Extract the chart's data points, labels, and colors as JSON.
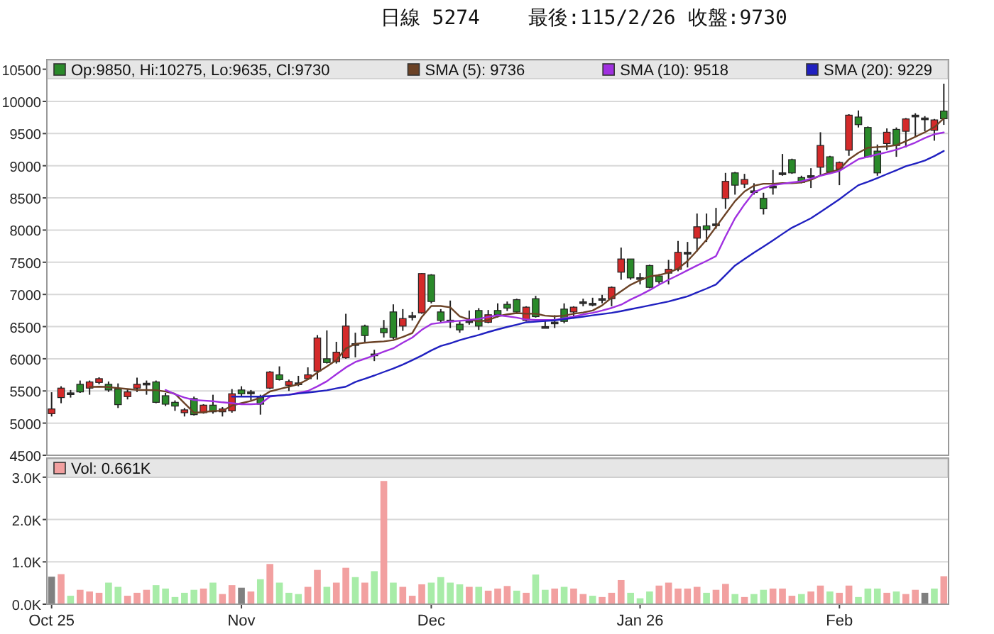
{
  "chart_data": [
    {
      "type": "candlestick",
      "title": "日線 5274",
      "subtitle": "最後:115/2/26 收盤:9730",
      "categories": [
        null,
        null,
        null,
        null,
        null,
        null,
        null,
        null,
        null,
        null,
        null,
        null,
        null,
        null,
        null,
        null,
        null,
        null,
        null,
        null,
        null,
        null,
        null,
        null,
        null,
        null,
        null,
        null,
        null,
        null,
        null,
        null,
        null,
        null,
        null,
        null,
        null,
        null,
        null,
        null,
        null,
        null,
        null,
        null,
        null,
        null,
        null,
        null,
        null,
        null,
        null,
        null,
        null,
        null,
        null,
        null,
        null,
        null,
        null,
        null,
        null,
        null,
        null,
        null,
        null,
        null,
        null,
        null,
        null,
        null,
        null,
        null,
        null,
        null,
        null,
        null,
        null,
        null,
        null,
        null,
        null,
        null,
        null,
        null,
        null,
        null,
        null,
        null,
        null,
        null,
        null,
        null,
        null,
        null,
        null
      ],
      "ylim": [
        4500,
        10650
      ],
      "yticks": [
        4500,
        5000,
        5500,
        6000,
        6500,
        7000,
        7500,
        8000,
        8500,
        9000,
        9500,
        10000,
        10500
      ],
      "grid": "y",
      "legend": "top",
      "tick_labels": "y",
      "series": [
        {
          "type": "candlestick",
          "name": "Op:9850, Hi:10275, Lo:9635, Cl:9730",
          "color": "#2a8a2a",
          "ohlc": [
            [
              5147,
              5480,
              5103,
              5220
            ],
            [
              5397,
              5573,
              5309,
              5544
            ],
            [
              5470,
              5515,
              5397,
              5456
            ],
            [
              5603,
              5662,
              5470,
              5485
            ],
            [
              5544,
              5662,
              5441,
              5640
            ],
            [
              5632,
              5713,
              5603,
              5691
            ],
            [
              5603,
              5647,
              5485,
              5515
            ],
            [
              5529,
              5617,
              5235,
              5287
            ],
            [
              5412,
              5529,
              5368,
              5485
            ],
            [
              5544,
              5706,
              5485,
              5603
            ],
            [
              5620,
              5662,
              5441,
              5610
            ],
            [
              5640,
              5662,
              5309,
              5323
            ],
            [
              5426,
              5470,
              5265,
              5294
            ],
            [
              5323,
              5353,
              5191,
              5265
            ],
            [
              5162,
              5235,
              5103,
              5206
            ],
            [
              5382,
              5412,
              5118,
              5132
            ],
            [
              5162,
              5294,
              5147,
              5279
            ],
            [
              5279,
              5441,
              5147,
              5176
            ],
            [
              5176,
              5250,
              5103,
              5220
            ],
            [
              5191,
              5529,
              5162,
              5456
            ],
            [
              5515,
              5573,
              5412,
              5456
            ],
            [
              5485,
              5515,
              5353,
              5456
            ],
            [
              5397,
              5441,
              5132,
              5294
            ],
            [
              5544,
              5809,
              5529,
              5794
            ],
            [
              5750,
              5882,
              5662,
              5676
            ],
            [
              5588,
              5676,
              5500,
              5647
            ],
            [
              5617,
              5735,
              5573,
              5625
            ],
            [
              5691,
              5867,
              5676,
              5750
            ],
            [
              5808,
              6367,
              5676,
              6323
            ],
            [
              6000,
              6441,
              5926,
              5941
            ],
            [
              5955,
              6264,
              5926,
              6102
            ],
            [
              6015,
              6699,
              6000,
              6508
            ],
            [
              6220,
              6405,
              6022,
              6235
            ],
            [
              6508,
              6530,
              6258,
              6361
            ],
            [
              6070,
              6140,
              5964,
              6074
            ],
            [
              6471,
              6603,
              6331,
              6405
            ],
            [
              6728,
              6846,
              6302,
              6331
            ],
            [
              6508,
              6772,
              6434,
              6625
            ],
            [
              6665,
              6728,
              6596,
              6670
            ],
            [
              6714,
              7331,
              6699,
              7324
            ],
            [
              7302,
              7316,
              6861,
              6890
            ],
            [
              6728,
              6772,
              6552,
              6596
            ],
            [
              6600,
              6905,
              6478,
              6596
            ],
            [
              6537,
              6581,
              6405,
              6449
            ],
            [
              6590,
              6750,
              6530,
              6581
            ],
            [
              6750,
              6787,
              6449,
              6508
            ],
            [
              6567,
              6758,
              6552,
              6684
            ],
            [
              6750,
              6861,
              6640,
              6684
            ],
            [
              6846,
              6890,
              6743,
              6787
            ],
            [
              6919,
              6934,
              6714,
              6728
            ],
            [
              6596,
              6816,
              6581,
              6802
            ],
            [
              6934,
              6978,
              6640,
              6655
            ],
            [
              6500,
              6596,
              6478,
              6493
            ],
            [
              6570,
              6677,
              6478,
              6567
            ],
            [
              6772,
              6861,
              6552,
              6581
            ],
            [
              6728,
              6816,
              6625,
              6802
            ],
            [
              6885,
              6934,
              6816,
              6883
            ],
            [
              6860,
              6949,
              6816,
              6861
            ],
            [
              6935,
              6993,
              6861,
              6934
            ],
            [
              6934,
              7125,
              6816,
              7110
            ],
            [
              7346,
              7728,
              7228,
              7551
            ],
            [
              7551,
              7551,
              7228,
              7257
            ],
            [
              7260,
              7331,
              7155,
              7257
            ],
            [
              7449,
              7463,
              7096,
              7110
            ],
            [
              7287,
              7316,
              7169,
              7199
            ],
            [
              7331,
              7537,
              7155,
              7390
            ],
            [
              7390,
              7831,
              7360,
              7654
            ],
            [
              7650,
              7816,
              7419,
              7654
            ],
            [
              7875,
              8257,
              7669,
              8051
            ],
            [
              8066,
              8257,
              7816,
              8007
            ],
            [
              8095,
              8345,
              8022,
              8095
            ],
            [
              8492,
              8889,
              8330,
              8757
            ],
            [
              8889,
              8904,
              8551,
              8698
            ],
            [
              8713,
              8874,
              8654,
              8786
            ],
            [
              8610,
              8728,
              8551,
              8610
            ],
            [
              8492,
              8580,
              8242,
              8331
            ],
            [
              8683,
              8933,
              8551,
              8683
            ],
            [
              8885,
              9183,
              8845,
              8889
            ],
            [
              9095,
              9110,
              8874,
              8889
            ],
            [
              8816,
              8845,
              8728,
              8742
            ],
            [
              8845,
              8962,
              8654,
              8845
            ],
            [
              8977,
              9521,
              8860,
              9315
            ],
            [
              9139,
              9154,
              8874,
              8904
            ],
            [
              8948,
              9066,
              8698,
              9051
            ],
            [
              9242,
              9801,
              9154,
              9786
            ],
            [
              9757,
              9860,
              9595,
              9639
            ],
            [
              9595,
              9610,
              9125,
              9139
            ],
            [
              9227,
              9330,
              8845,
              8889
            ],
            [
              9345,
              9580,
              9242,
              9521
            ],
            [
              9565,
              9595,
              9139,
              9315
            ],
            [
              9536,
              9742,
              9286,
              9727
            ],
            [
              9786,
              9816,
              9448,
              9786
            ],
            [
              9742,
              9771,
              9536,
              9742
            ],
            [
              9551,
              9727,
              9389,
              9712
            ],
            [
              9850,
              10275,
              9635,
              9730
            ]
          ],
          "colors": [
            "#d42a2a",
            "#d42a2a",
            "#333333",
            "#2a8a2a",
            "#d42a2a",
            "#d42a2a",
            "#2a8a2a",
            "#2a8a2a",
            "#d42a2a",
            "#d42a2a",
            "#333333",
            "#2a8a2a",
            "#2a8a2a",
            "#2a8a2a",
            "#d42a2a",
            "#2a8a2a",
            "#d42a2a",
            "#2a8a2a",
            "#d42a2a",
            "#d42a2a",
            "#2a8a2a",
            "#333333",
            "#2a8a2a",
            "#d42a2a",
            "#2a8a2a",
            "#d42a2a",
            "#333333",
            "#d42a2a",
            "#d42a2a",
            "#2a8a2a",
            "#d42a2a",
            "#d42a2a",
            "#333333",
            "#2a8a2a",
            "#333333",
            "#2a8a2a",
            "#2a8a2a",
            "#d42a2a",
            "#333333",
            "#d42a2a",
            "#2a8a2a",
            "#2a8a2a",
            "#333333",
            "#2a8a2a",
            "#333333",
            "#2a8a2a",
            "#d42a2a",
            "#2a8a2a",
            "#2a8a2a",
            "#2a8a2a",
            "#d42a2a",
            "#2a8a2a",
            "#333333",
            "#333333",
            "#2a8a2a",
            "#d42a2a",
            "#333333",
            "#333333",
            "#333333",
            "#d42a2a",
            "#d42a2a",
            "#2a8a2a",
            "#333333",
            "#2a8a2a",
            "#2a8a2a",
            "#d42a2a",
            "#d42a2a",
            "#333333",
            "#d42a2a",
            "#2a8a2a",
            "#333333",
            "#d42a2a",
            "#2a8a2a",
            "#d42a2a",
            "#333333",
            "#2a8a2a",
            "#333333",
            "#333333",
            "#2a8a2a",
            "#2a8a2a",
            "#333333",
            "#d42a2a",
            "#2a8a2a",
            "#d42a2a",
            "#d42a2a",
            "#2a8a2a",
            "#2a8a2a",
            "#2a8a2a",
            "#d42a2a",
            "#2a8a2a",
            "#d42a2a",
            "#333333",
            "#333333",
            "#d42a2a",
            "#2a8a2a"
          ]
        },
        {
          "type": "line",
          "name": "SMA (5): 9736",
          "color": "#6b4226",
          "values": [
            null,
            null,
            null,
            null,
            5560,
            5566,
            5560,
            5544,
            5530,
            5515,
            5515,
            5512,
            5490,
            5456,
            5309,
            5162,
            5170,
            5190,
            5191,
            5272,
            5310,
            5345,
            5397,
            5492,
            5530,
            5566,
            5603,
            5680,
            5786,
            5880,
            5980,
            6160,
            6230,
            6250,
            6260,
            6270,
            6290,
            6340,
            6400,
            6650,
            6820,
            6820,
            6800,
            6660,
            6610,
            6580,
            6600,
            6660,
            6690,
            6710,
            6700,
            6700,
            6670,
            6660,
            6670,
            6700,
            6720,
            6750,
            6830,
            6950,
            7050,
            7150,
            7220,
            7280,
            7300,
            7340,
            7400,
            7520,
            7680,
            7850,
            8050,
            8250,
            8450,
            8600,
            8690,
            8720,
            8720,
            8730,
            8730,
            8740,
            8780,
            8850,
            8900,
            8940,
            9100,
            9200,
            9280,
            9290,
            9300,
            9320,
            9380,
            9450,
            9520,
            9600,
            9736
          ]
        },
        {
          "type": "line",
          "name": "SMA (10): 9518",
          "color": "#a030e0",
          "values": [
            null,
            null,
            null,
            null,
            null,
            null,
            null,
            null,
            null,
            null,
            null,
            null,
            5515,
            5450,
            5397,
            5360,
            5350,
            5340,
            5323,
            5310,
            5294,
            5294,
            5300,
            5412,
            5430,
            5441,
            5470,
            5500,
            5570,
            5650,
            5760,
            5865,
            5950,
            6000,
            6052,
            6110,
            6162,
            6250,
            6330,
            6450,
            6540,
            6560,
            6580,
            6590,
            6603,
            6620,
            6650,
            6677,
            6660,
            6640,
            6610,
            6603,
            6603,
            6603,
            6630,
            6655,
            6690,
            6714,
            6750,
            6790,
            6840,
            6920,
            6990,
            7066,
            7150,
            7228,
            7300,
            7375,
            7450,
            7520,
            7596,
            7900,
            8184,
            8400,
            8588,
            8650,
            8698,
            8720,
            8740,
            8757,
            8800,
            8845,
            8880,
            8919,
            9010,
            9102,
            9140,
            9176,
            9210,
            9249,
            9300,
            9360,
            9430,
            9490,
            9518
          ]
        },
        {
          "type": "line",
          "name": "SMA (20): 9229",
          "color": "#2020c0",
          "values": [
            null,
            null,
            null,
            null,
            null,
            null,
            null,
            null,
            null,
            null,
            null,
            null,
            null,
            null,
            null,
            null,
            null,
            null,
            null,
            5412,
            5412,
            5412,
            5412,
            5420,
            5430,
            5441,
            5460,
            5475,
            5492,
            5510,
            5540,
            5566,
            5640,
            5690,
            5740,
            5795,
            5850,
            5910,
            5979,
            6050,
            6130,
            6199,
            6240,
            6290,
            6331,
            6370,
            6415,
            6456,
            6495,
            6530,
            6567,
            6577,
            6587,
            6596,
            6616,
            6635,
            6655,
            6675,
            6695,
            6714,
            6740,
            6770,
            6800,
            6830,
            6860,
            6890,
            6930,
            6971,
            7030,
            7090,
            7155,
            7300,
            7449,
            7550,
            7650,
            7743,
            7840,
            7940,
            8037,
            8110,
            8184,
            8280,
            8380,
            8478,
            8590,
            8698,
            8750,
            8808,
            8870,
            8930,
            8992,
            9035,
            9080,
            9150,
            9229
          ]
        }
      ]
    },
    {
      "type": "bar",
      "categories": [
        "Oct 25",
        null,
        null,
        null,
        null,
        null,
        null,
        null,
        null,
        null,
        null,
        null,
        null,
        null,
        null,
        null,
        null,
        null,
        null,
        null,
        "Nov",
        null,
        null,
        null,
        null,
        null,
        null,
        null,
        null,
        null,
        null,
        null,
        null,
        null,
        null,
        null,
        null,
        null,
        null,
        null,
        "Dec",
        null,
        null,
        null,
        null,
        null,
        null,
        null,
        null,
        null,
        null,
        null,
        null,
        null,
        null,
        null,
        null,
        null,
        null,
        null,
        null,
        null,
        "Jan 26",
        null,
        null,
        null,
        null,
        null,
        null,
        null,
        null,
        null,
        null,
        null,
        null,
        null,
        null,
        null,
        null,
        null,
        null,
        null,
        null,
        "Feb",
        null,
        null,
        null,
        null,
        null,
        null,
        null,
        null,
        null,
        null,
        null
      ],
      "ylim": [
        0,
        3.45
      ],
      "yticks": [
        {
          "value": 0,
          "label": "0.0K"
        },
        {
          "value": 1,
          "label": "1.0K"
        },
        {
          "value": 2,
          "label": "2.0K"
        },
        {
          "value": 3,
          "label": "3.0K"
        }
      ],
      "grid": "y",
      "legend": "top",
      "series": [
        {
          "name": "Vol: 0.661K",
          "color": "#f2a0a0",
          "values": [
            0.65,
            0.71,
            0.2,
            0.34,
            0.3,
            0.27,
            0.51,
            0.41,
            0.2,
            0.27,
            0.34,
            0.45,
            0.37,
            0.17,
            0.27,
            0.34,
            0.37,
            0.51,
            0.24,
            0.45,
            0.39,
            0.3,
            0.59,
            0.95,
            0.51,
            0.27,
            0.24,
            0.41,
            0.81,
            0.41,
            0.51,
            0.86,
            0.64,
            0.51,
            0.78,
            2.91,
            0.51,
            0.41,
            0.2,
            0.47,
            0.51,
            0.64,
            0.51,
            0.47,
            0.41,
            0.41,
            0.32,
            0.37,
            0.43,
            0.32,
            0.27,
            0.7,
            0.34,
            0.37,
            0.41,
            0.37,
            0.24,
            0.2,
            0.17,
            0.27,
            0.57,
            0.27,
            0.14,
            0.3,
            0.44,
            0.51,
            0.37,
            0.37,
            0.41,
            0.27,
            0.34,
            0.48,
            0.24,
            0.17,
            0.24,
            0.34,
            0.37,
            0.37,
            0.2,
            0.24,
            0.3,
            0.44,
            0.3,
            0.27,
            0.44,
            0.17,
            0.37,
            0.37,
            0.27,
            0.3,
            0.24,
            0.34,
            0.27,
            0.37,
            0.661
          ],
          "colors": [
            "#808080",
            "#f2a0a0",
            "#a8eca8",
            "#f2a0a0",
            "#f2a0a0",
            "#f2a0a0",
            "#a8eca8",
            "#a8eca8",
            "#f2a0a0",
            "#f2a0a0",
            "#f2a0a0",
            "#a8eca8",
            "#a8eca8",
            "#a8eca8",
            "#a8eca8",
            "#a8eca8",
            "#f2a0a0",
            "#a8eca8",
            "#f2a0a0",
            "#f2a0a0",
            "#808080",
            "#f2a0a0",
            "#a8eca8",
            "#f2a0a0",
            "#a8eca8",
            "#a8eca8",
            "#a8eca8",
            "#f2a0a0",
            "#f2a0a0",
            "#a8eca8",
            "#f2a0a0",
            "#f2a0a0",
            "#a8eca8",
            "#f2a0a0",
            "#a8eca8",
            "#f2a0a0",
            "#a8eca8",
            "#f2a0a0",
            "#f2a0a0",
            "#f2a0a0",
            "#a8eca8",
            "#a8eca8",
            "#a8eca8",
            "#a8eca8",
            "#f2a0a0",
            "#a8eca8",
            "#f2a0a0",
            "#f2a0a0",
            "#f2a0a0",
            "#a8eca8",
            "#f2a0a0",
            "#a8eca8",
            "#a8eca8",
            "#f2a0a0",
            "#a8eca8",
            "#f2a0a0",
            "#f2a0a0",
            "#a8eca8",
            "#f2a0a0",
            "#f2a0a0",
            "#f2a0a0",
            "#a8eca8",
            "#a8eca8",
            "#a8eca8",
            "#f2a0a0",
            "#f2a0a0",
            "#f2a0a0",
            "#f2a0a0",
            "#f2a0a0",
            "#a8eca8",
            "#f2a0a0",
            "#f2a0a0",
            "#a8eca8",
            "#f2a0a0",
            "#a8eca8",
            "#a8eca8",
            "#f2a0a0",
            "#f2a0a0",
            "#f2a0a0",
            "#a8eca8",
            "#f2a0a0",
            "#f2a0a0",
            "#a8eca8",
            "#f2a0a0",
            "#f2a0a0",
            "#a8eca8",
            "#a8eca8",
            "#a8eca8",
            "#f2a0a0",
            "#a8eca8",
            "#f2a0a0",
            "#f2a0a0",
            "#808080",
            "#a8eca8",
            "#f2a0a0"
          ]
        }
      ]
    }
  ]
}
